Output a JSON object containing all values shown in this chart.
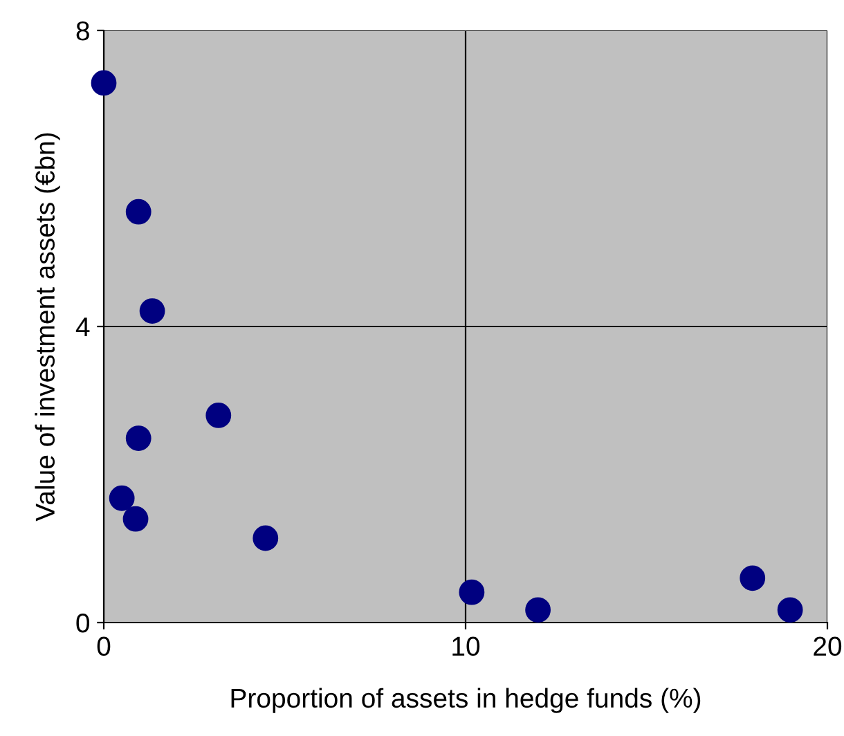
{
  "chart_data": {
    "type": "scatter",
    "xlabel": "Proportion of assets in hedge funds (%)",
    "ylabel": "Value of investment assets (€bn)",
    "x": [
      0,
      0.96,
      1.34,
      3.17,
      0.96,
      0.5,
      0.88,
      4.47,
      10.17,
      12.0,
      17.93,
      18.97
    ],
    "series": [
      {
        "color": "#000080",
        "values": [
          7.29,
          5.55,
          4.21,
          2.8,
          2.49,
          1.68,
          1.4,
          1.14,
          0.41,
          0.17,
          0.6,
          0.17
        ]
      }
    ],
    "xlim": [
      0,
      20
    ],
    "xticks": [
      0,
      10,
      20
    ],
    "ylim": [
      0,
      8
    ],
    "yticks": [
      0,
      4,
      8
    ],
    "grid": true,
    "marker": "circle",
    "legend": false
  }
}
